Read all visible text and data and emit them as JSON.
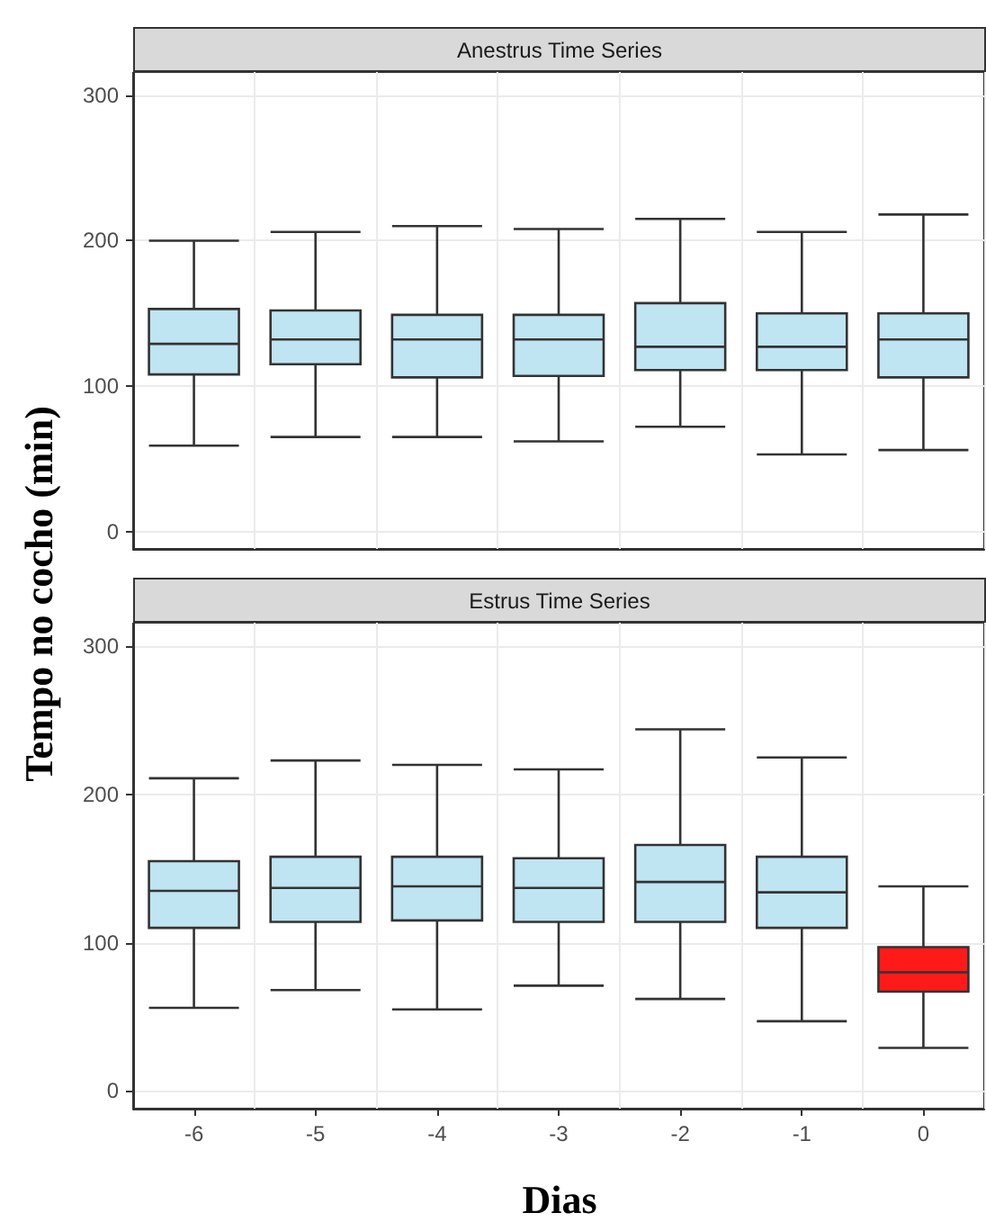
{
  "chart_data": [
    {
      "type": "box",
      "title": "Anestrus Time Series",
      "ylabel": "Tempo no cocho (min)",
      "categories": [
        "-6",
        "-5",
        "-4",
        "-3",
        "-2",
        "-1",
        "0"
      ],
      "boxes": [
        {
          "low": 59,
          "q1": 108,
          "median": 129,
          "q3": 153,
          "high": 200
        },
        {
          "low": 65,
          "q1": 115,
          "median": 132,
          "q3": 152,
          "high": 206
        },
        {
          "low": 65,
          "q1": 106,
          "median": 132,
          "q3": 149,
          "high": 210
        },
        {
          "low": 62,
          "q1": 107,
          "median": 132,
          "q3": 149,
          "high": 208
        },
        {
          "low": 72,
          "q1": 111,
          "median": 127,
          "q3": 157,
          "high": 215
        },
        {
          "low": 53,
          "q1": 111,
          "median": 127,
          "q3": 150,
          "high": 206
        },
        {
          "low": 56,
          "q1": 106,
          "median": 132,
          "q3": 150,
          "high": 218
        }
      ],
      "colors": [
        "#bfe4f2",
        "#bfe4f2",
        "#bfe4f2",
        "#bfe4f2",
        "#bfe4f2",
        "#bfe4f2",
        "#bfe4f2"
      ],
      "ylim": [
        -12,
        316
      ],
      "yticks": [
        0,
        100,
        200,
        300
      ],
      "grid": true,
      "tick_labels": "y"
    },
    {
      "type": "box",
      "title": "Estrus Time Series",
      "xlabel": "Dias",
      "categories": [
        "-6",
        "-5",
        "-4",
        "-3",
        "-2",
        "-1",
        "0"
      ],
      "boxes": [
        {
          "low": 56,
          "q1": 110,
          "median": 135,
          "q3": 155,
          "high": 211
        },
        {
          "low": 68,
          "q1": 114,
          "median": 137,
          "q3": 158,
          "high": 223
        },
        {
          "low": 55,
          "q1": 115,
          "median": 138,
          "q3": 158,
          "high": 220
        },
        {
          "low": 71,
          "q1": 114,
          "median": 137,
          "q3": 157,
          "high": 217
        },
        {
          "low": 62,
          "q1": 114,
          "median": 141,
          "q3": 166,
          "high": 244
        },
        {
          "low": 47,
          "q1": 110,
          "median": 134,
          "q3": 158,
          "high": 225
        },
        {
          "low": 29,
          "q1": 67,
          "median": 80,
          "q3": 97,
          "high": 138
        }
      ],
      "colors": [
        "#bfe4f2",
        "#bfe4f2",
        "#bfe4f2",
        "#bfe4f2",
        "#bfe4f2",
        "#bfe4f2",
        "#ff1a1a"
      ],
      "ylim": [
        -12,
        316
      ],
      "yticks": [
        0,
        100,
        200,
        300
      ],
      "grid": true
    }
  ]
}
